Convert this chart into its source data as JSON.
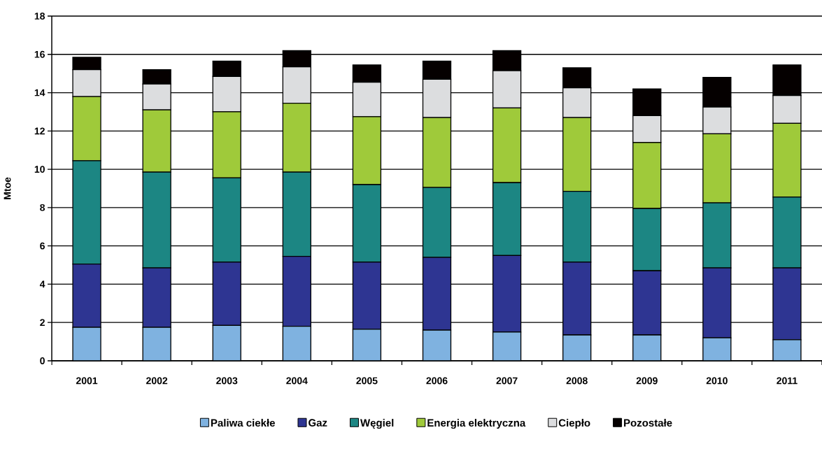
{
  "chart_data": {
    "type": "bar",
    "stacked": true,
    "ylabel": "Mtoe",
    "categories": [
      "2001",
      "2002",
      "2003",
      "2004",
      "2005",
      "2006",
      "2007",
      "2008",
      "2009",
      "2010",
      "2011"
    ],
    "series": [
      {
        "name": "Paliwa ciekłe",
        "color": "#7fb2e0",
        "values": [
          1.75,
          1.75,
          1.85,
          1.8,
          1.65,
          1.6,
          1.5,
          1.35,
          1.35,
          1.2,
          1.1
        ]
      },
      {
        "name": "Gaz",
        "color": "#2e3592",
        "values": [
          3.3,
          3.1,
          3.3,
          3.65,
          3.5,
          3.8,
          4.0,
          3.8,
          3.35,
          3.65,
          3.75
        ]
      },
      {
        "name": "Węgiel",
        "color": "#1c8683",
        "values": [
          5.4,
          5.0,
          4.4,
          4.4,
          4.05,
          3.65,
          3.8,
          3.7,
          3.25,
          3.4,
          3.7
        ]
      },
      {
        "name": "Energia elektryczna",
        "color": "#9fca3a",
        "values": [
          3.35,
          3.25,
          3.45,
          3.6,
          3.55,
          3.65,
          3.9,
          3.85,
          3.45,
          3.6,
          3.85
        ]
      },
      {
        "name": "Ciepło",
        "color": "#dcdddf",
        "values": [
          1.4,
          1.35,
          1.85,
          1.9,
          1.8,
          2.0,
          1.95,
          1.55,
          1.4,
          1.4,
          1.45
        ]
      },
      {
        "name": "Pozostałe",
        "color": "#050000",
        "values": [
          0.65,
          0.75,
          0.8,
          0.85,
          0.9,
          0.95,
          1.05,
          1.05,
          1.4,
          1.55,
          1.6
        ]
      }
    ],
    "ylim": [
      0,
      18
    ],
    "yticks": [
      0,
      2,
      4,
      6,
      8,
      10,
      12,
      14,
      16,
      18
    ],
    "grid": "y",
    "legend": "bottom"
  }
}
